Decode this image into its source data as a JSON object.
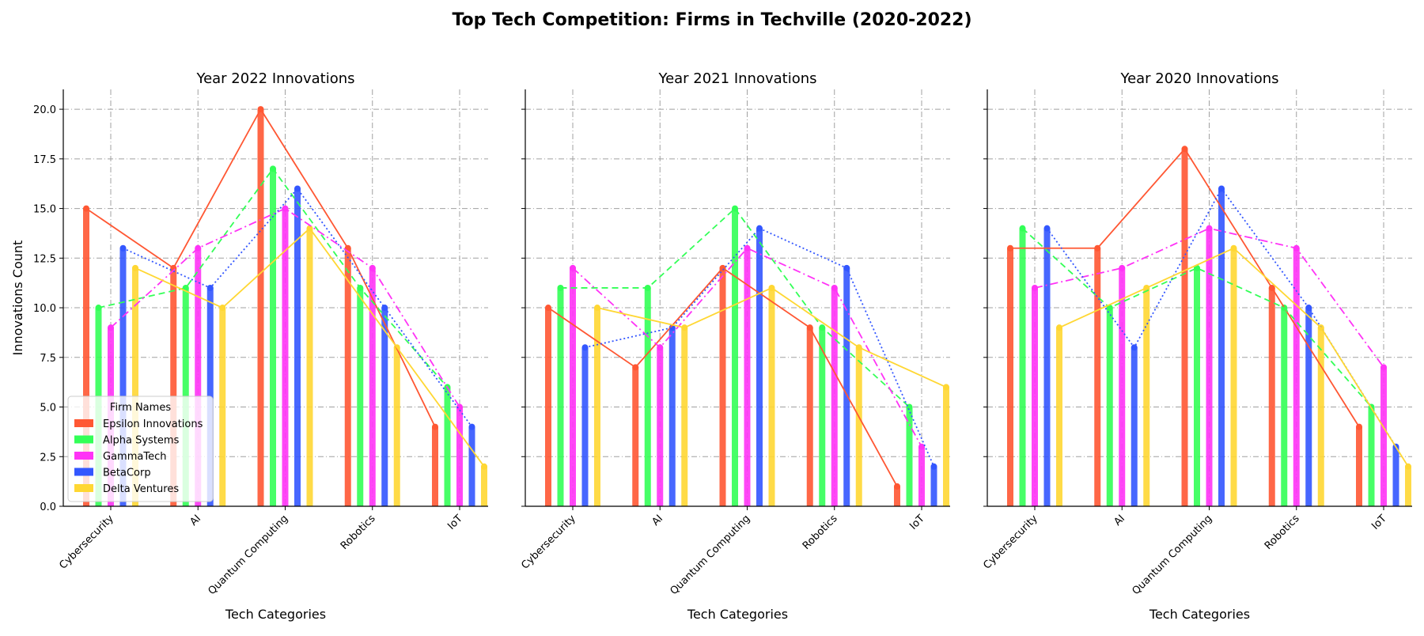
{
  "figure_title": "Top Tech Competition: Firms in Techville (2020-2022)",
  "legend": {
    "title": "Firm Names",
    "placement": "lower-left of first panel"
  },
  "styles": {
    "Epsilon Innovations": {
      "color": "#FF5733",
      "dash": "solid"
    },
    "Alpha Systems": {
      "color": "#33FF57",
      "dash": "dashed"
    },
    "GammaTech": {
      "color": "#FF33F6",
      "dash": "dashdot"
    },
    "BetaCorp": {
      "color": "#3357FF",
      "dash": "dotted"
    },
    "Delta Ventures": {
      "color": "#FFD733",
      "dash": "solid"
    }
  },
  "chart_data": [
    {
      "type": "bar",
      "title": "Year 2022 Innovations",
      "xlabel": "Tech Categories",
      "ylabel": "Innovations Count",
      "categories": [
        "Cybersecurity",
        "AI",
        "Quantum Computing",
        "Robotics",
        "IoT"
      ],
      "ylim": [
        0,
        21
      ],
      "yticks": [
        "0.0",
        "2.5",
        "5.0",
        "7.5",
        "10.0",
        "12.5",
        "15.0",
        "17.5",
        "20.0"
      ],
      "grid": true,
      "series": [
        {
          "name": "Epsilon Innovations",
          "values": [
            15,
            12,
            20,
            13,
            4
          ]
        },
        {
          "name": "Alpha Systems",
          "values": [
            10,
            11,
            17,
            11,
            6
          ]
        },
        {
          "name": "GammaTech",
          "values": [
            9,
            13,
            15,
            12,
            5
          ]
        },
        {
          "name": "BetaCorp",
          "values": [
            13,
            11,
            16,
            10,
            4
          ]
        },
        {
          "name": "Delta Ventures",
          "values": [
            12,
            10,
            14,
            8,
            2
          ]
        }
      ]
    },
    {
      "type": "bar",
      "title": "Year 2021 Innovations",
      "xlabel": "Tech Categories",
      "ylabel": "",
      "categories": [
        "Cybersecurity",
        "AI",
        "Quantum Computing",
        "Robotics",
        "IoT"
      ],
      "ylim": [
        0,
        21
      ],
      "yticks": [],
      "grid": true,
      "series": [
        {
          "name": "Epsilon Innovations",
          "values": [
            10,
            7,
            12,
            9,
            1
          ]
        },
        {
          "name": "Alpha Systems",
          "values": [
            11,
            11,
            15,
            9,
            5
          ]
        },
        {
          "name": "GammaTech",
          "values": [
            12,
            8,
            13,
            11,
            3
          ]
        },
        {
          "name": "BetaCorp",
          "values": [
            8,
            9,
            14,
            12,
            2
          ]
        },
        {
          "name": "Delta Ventures",
          "values": [
            10,
            9,
            11,
            8,
            6
          ]
        }
      ]
    },
    {
      "type": "bar",
      "title": "Year 2020 Innovations",
      "xlabel": "Tech Categories",
      "ylabel": "",
      "categories": [
        "Cybersecurity",
        "AI",
        "Quantum Computing",
        "Robotics",
        "IoT"
      ],
      "ylim": [
        0,
        21
      ],
      "yticks": [],
      "grid": true,
      "series": [
        {
          "name": "Epsilon Innovations",
          "values": [
            13,
            13,
            18,
            11,
            4
          ]
        },
        {
          "name": "Alpha Systems",
          "values": [
            14,
            10,
            12,
            10,
            5
          ]
        },
        {
          "name": "GammaTech",
          "values": [
            11,
            12,
            14,
            13,
            7
          ]
        },
        {
          "name": "BetaCorp",
          "values": [
            14,
            8,
            16,
            10,
            3
          ]
        },
        {
          "name": "Delta Ventures",
          "values": [
            9,
            11,
            13,
            9,
            2
          ]
        }
      ]
    }
  ]
}
